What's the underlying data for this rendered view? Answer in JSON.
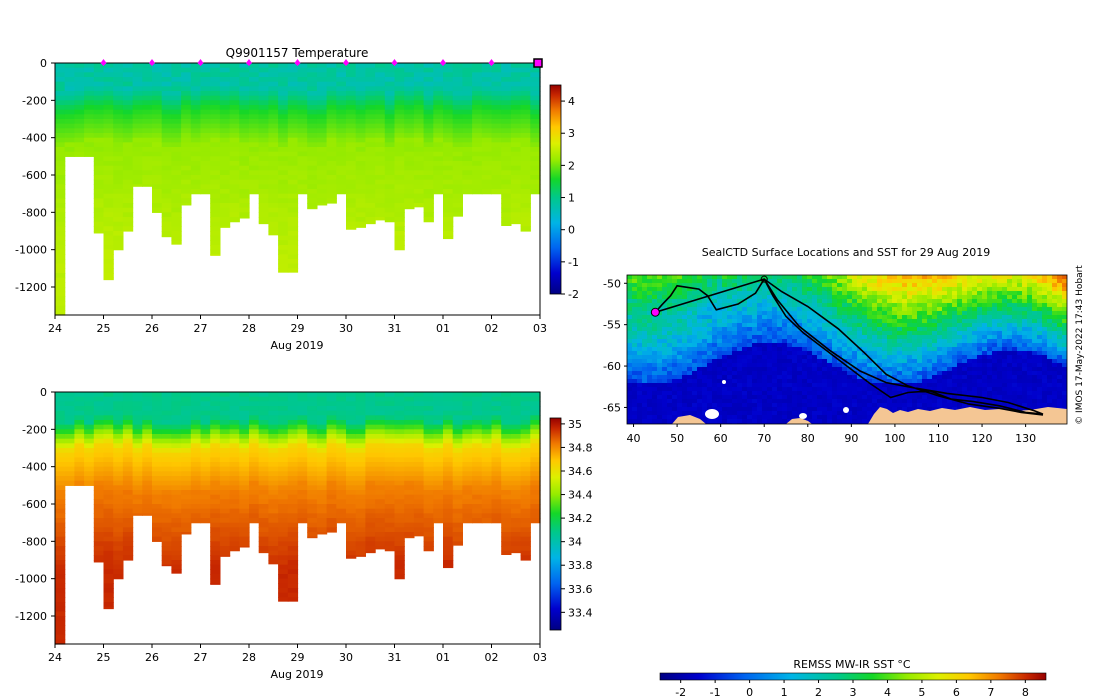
{
  "chart_data": [
    {
      "type": "heatmap",
      "id": "temperature",
      "title": "Q9901157  Temperature",
      "xlabel": "Aug 2019",
      "x_ticks": [
        "24",
        "25",
        "26",
        "27",
        "28",
        "29",
        "30",
        "31",
        "01",
        "02",
        "03"
      ],
      "y_ticks": [
        "0",
        "-200",
        "-400",
        "-600",
        "-800",
        "-1000",
        "-1200"
      ],
      "ylim": [
        -1350,
        0
      ],
      "colorbar_ticks": [
        "4",
        "3",
        "2",
        "1",
        "0",
        "-1",
        "-2"
      ],
      "colorbar_range": [
        -2,
        4.5
      ],
      "profile_count": 50,
      "surface_markers": [
        1,
        2,
        3,
        4,
        5,
        6,
        7,
        8,
        9
      ],
      "last_marker": 10
    },
    {
      "type": "heatmap",
      "id": "salinity",
      "title": "",
      "xlabel": "Aug 2019",
      "x_ticks": [
        "24",
        "25",
        "26",
        "27",
        "28",
        "29",
        "30",
        "31",
        "01",
        "02",
        "03"
      ],
      "y_ticks": [
        "0",
        "-200",
        "-400",
        "-600",
        "-800",
        "-1000",
        "-1200"
      ],
      "ylim": [
        -1350,
        0
      ],
      "colorbar_ticks": [
        "35",
        "34.8",
        "34.6",
        "34.4",
        "34.2",
        "34",
        "33.8",
        "33.6",
        "33.4"
      ],
      "colorbar_range": [
        33.25,
        35.05
      ],
      "profile_count": 50
    },
    {
      "type": "map",
      "id": "sst_map",
      "title": "SealCTD Surface Locations and SST for 29 Aug 2019",
      "x_ticks": [
        "40",
        "50",
        "60",
        "70",
        "80",
        "90",
        "100",
        "110",
        "120",
        "130"
      ],
      "y_ticks": [
        "-50",
        "-55",
        "-60",
        "-65"
      ],
      "xlim": [
        38.5,
        139.5
      ],
      "ylim": [
        -67,
        -49
      ],
      "colorbar_label": "REMSS MW-IR SST °C",
      "colorbar_ticks": [
        "-2",
        "-1",
        "0",
        "1",
        "2",
        "3",
        "4",
        "5",
        "6",
        "7",
        "8"
      ],
      "colorbar_range": [
        -2.6,
        8.6
      ],
      "track": [
        [
          70,
          -49.5
        ],
        [
          68,
          -51.2
        ],
        [
          64,
          -52.5
        ],
        [
          59,
          -53.2
        ],
        [
          57,
          -51.5
        ],
        [
          55,
          -50.7
        ],
        [
          50,
          -50.3
        ],
        [
          48.5,
          -51.5
        ],
        [
          46.5,
          -52.6
        ],
        [
          45,
          -53.5
        ],
        [
          70,
          -49.5
        ],
        [
          72,
          -51.5
        ],
        [
          75,
          -54
        ],
        [
          79,
          -56
        ],
        [
          84,
          -58
        ],
        [
          89,
          -60
        ],
        [
          94,
          -62
        ],
        [
          99,
          -63.8
        ],
        [
          103,
          -63.2
        ],
        [
          108,
          -63
        ],
        [
          113,
          -64
        ],
        [
          118,
          -64.3
        ],
        [
          124,
          -64.8
        ],
        [
          130,
          -65.6
        ],
        [
          134,
          -65.8
        ],
        [
          132,
          -65.4
        ],
        [
          126,
          -64.4
        ],
        [
          120,
          -63.8
        ],
        [
          112,
          -63.3
        ],
        [
          104,
          -62.6
        ],
        [
          98,
          -62
        ],
        [
          92,
          -60.6
        ],
        [
          85,
          -58.1
        ],
        [
          78,
          -55.2
        ],
        [
          73,
          -52
        ],
        [
          70,
          -49.5
        ],
        [
          74,
          -51
        ],
        [
          80,
          -52.8
        ],
        [
          87,
          -55.5
        ],
        [
          93,
          -58.4
        ],
        [
          98,
          -61
        ],
        [
          103,
          -62.4
        ],
        [
          110,
          -63.6
        ],
        [
          117,
          -64.6
        ],
        [
          124,
          -65.1
        ],
        [
          129,
          -65.6
        ],
        [
          134,
          -65.9
        ]
      ],
      "start_marker": [
        45,
        -53.5
      ],
      "end_marker": [
        70,
        -49.5
      ],
      "credit": "© IMOS 17-May-2022 17:43 Hobart"
    }
  ]
}
